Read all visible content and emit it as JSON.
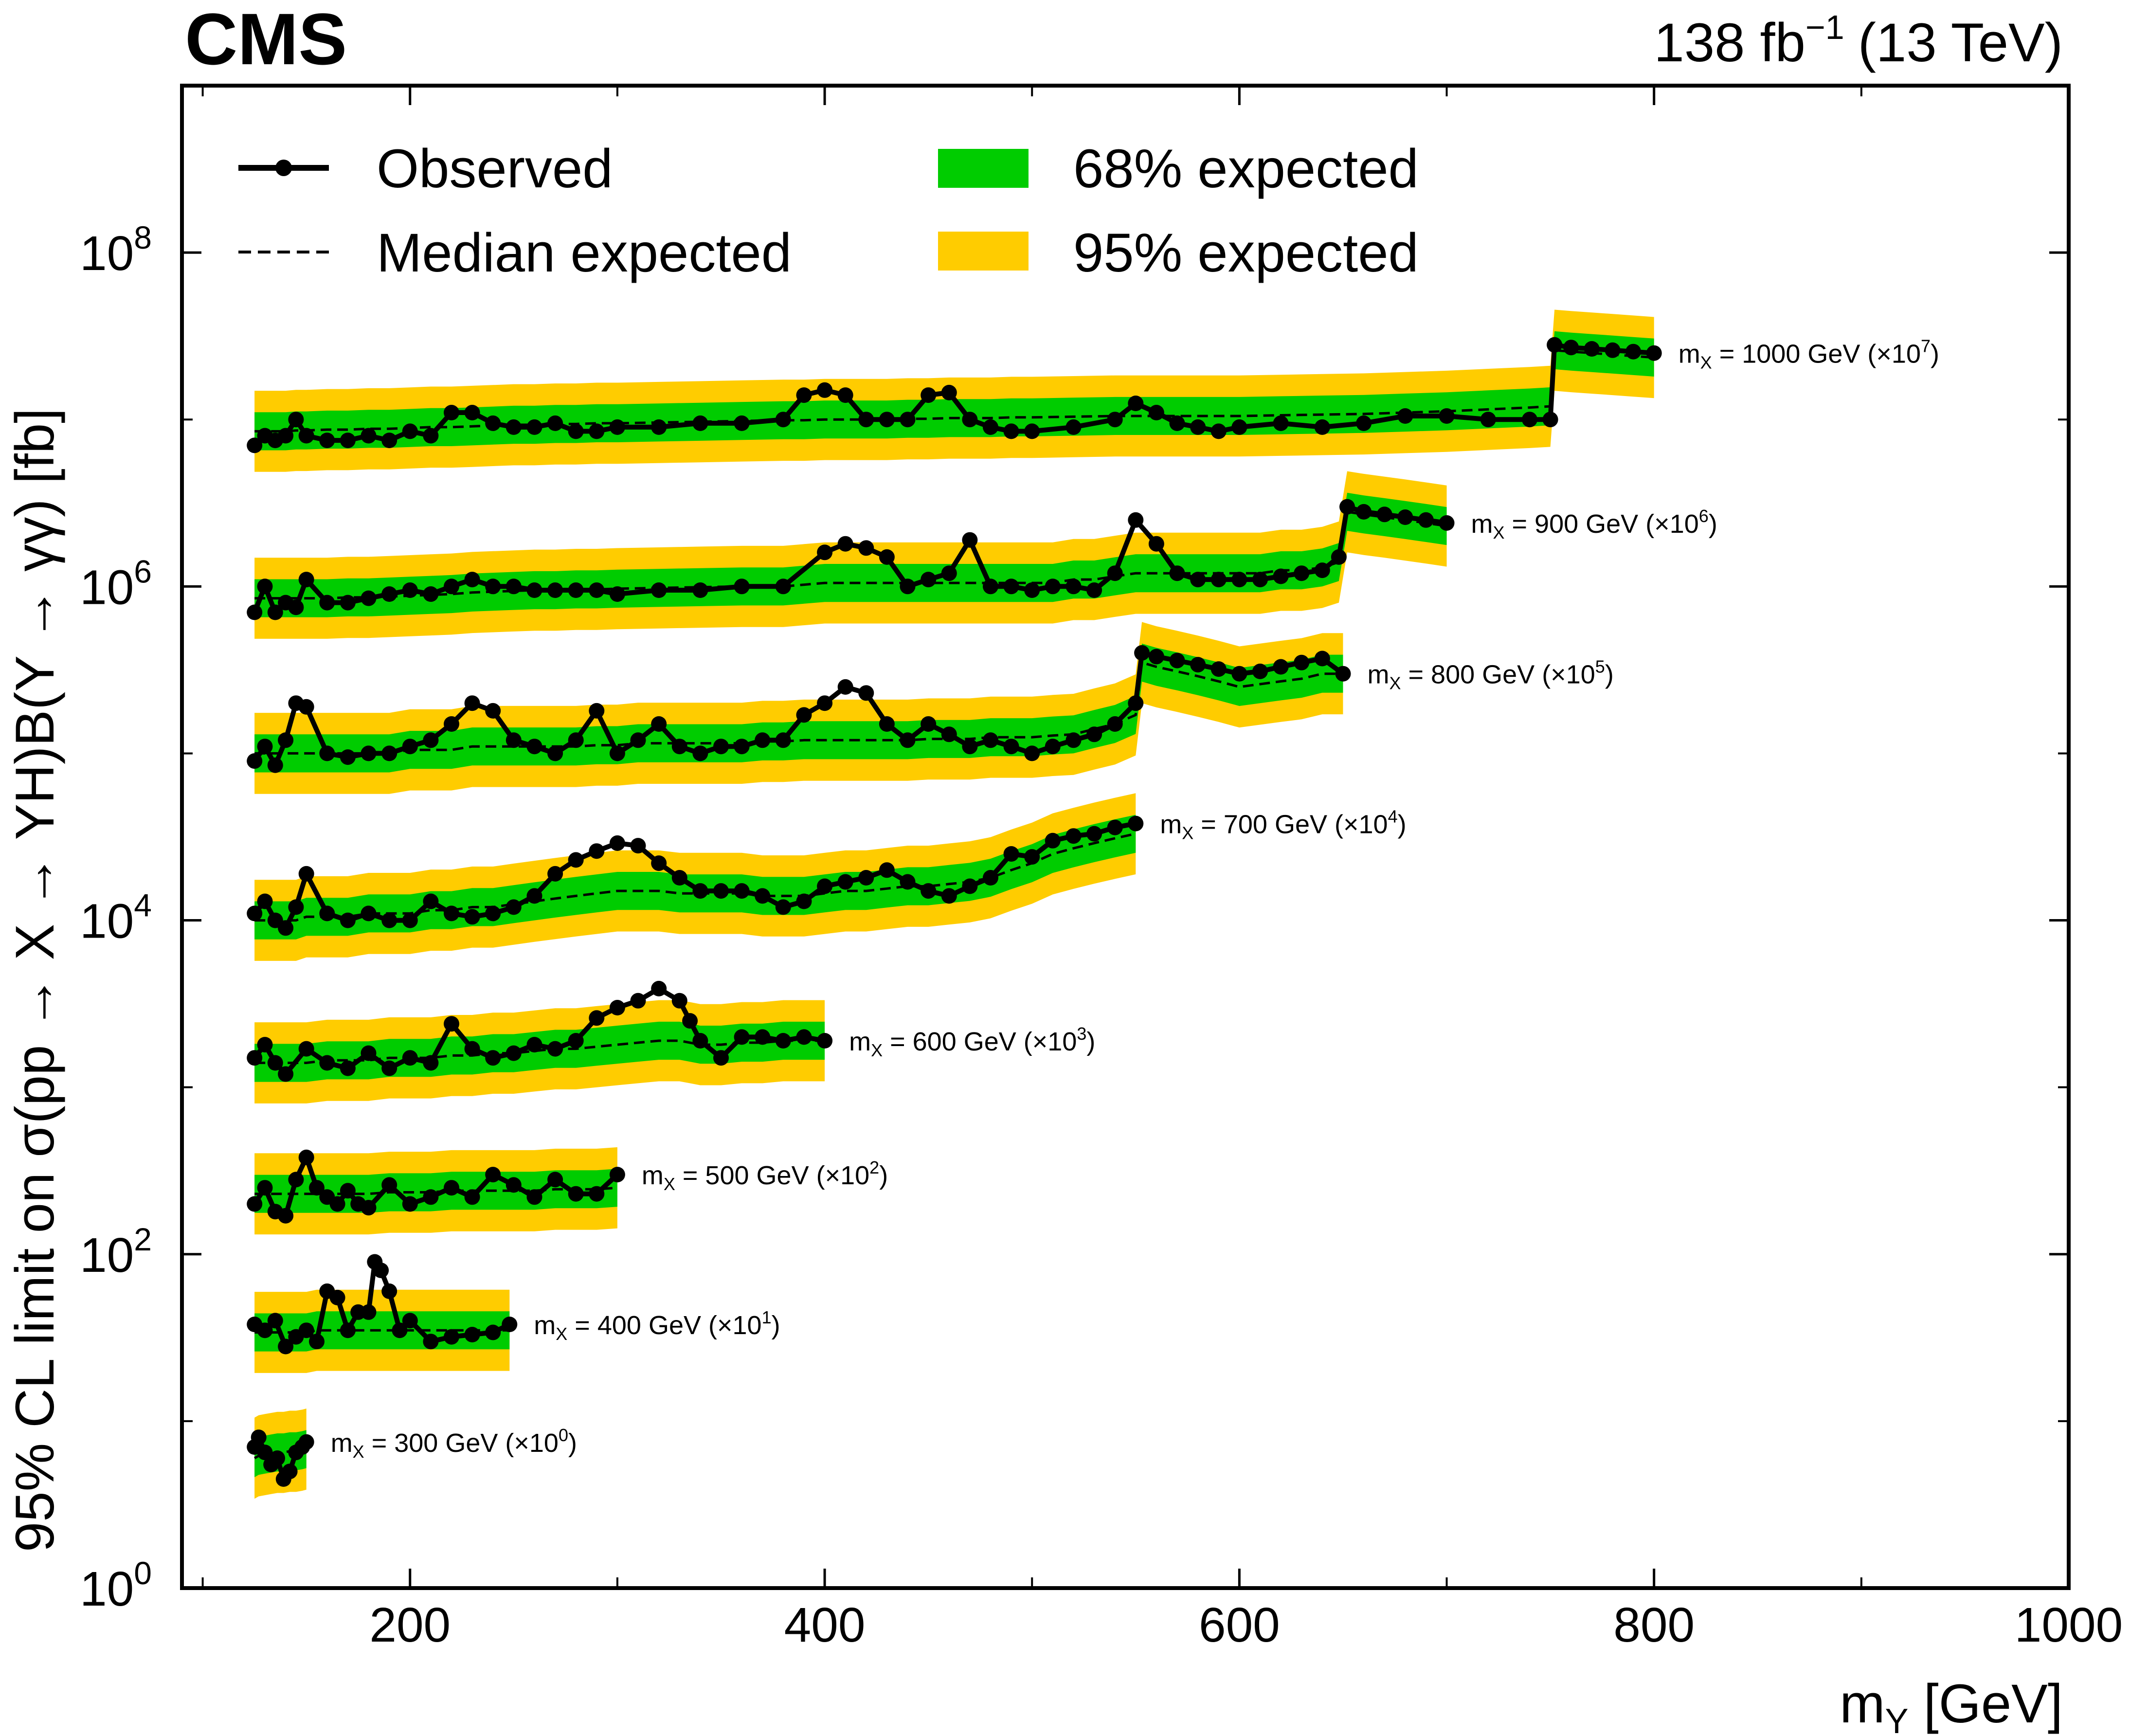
{
  "header": {
    "experiment": "CMS",
    "lumi_value": "138 fb",
    "lumi_exponent": "−1",
    "energy": "(13 TeV)"
  },
  "colors": {
    "band68": "#00cc00",
    "band95": "#ffcc00",
    "observed": "#000000",
    "expected": "#000000"
  },
  "chart_data": {
    "type": "line",
    "title": "",
    "xlabel": "m",
    "xlabel_sub": "Y",
    "xlabel_unit": " [GeV]",
    "ylabel": "95% CL limit on σ(pp → X → YH)B(Y → γγ) [fb]",
    "yscale": "log",
    "xlim": [
      90,
      1000
    ],
    "ylim": [
      1,
      1000000000
    ],
    "x_ticks": [
      200,
      400,
      600,
      800,
      1000
    ],
    "y_ticks": [
      {
        "base": "10",
        "exp": "0",
        "value": 1
      },
      {
        "base": "10",
        "exp": "2",
        "value": 100
      },
      {
        "base": "10",
        "exp": "4",
        "value": 10000
      },
      {
        "base": "10",
        "exp": "6",
        "value": 1000000
      },
      {
        "base": "10",
        "exp": "8",
        "value": 100000000
      }
    ],
    "legend": {
      "observed": "Observed",
      "expected": "Median expected",
      "band68": "68% expected",
      "band95": "95% expected",
      "placement": "top-left"
    },
    "series": [
      {
        "name": "m_X = 300 GeV",
        "label_prefix": "m",
        "label_sub": "X",
        "label_mid": " = 300 GeV (×10",
        "label_exp": "0",
        "label_suffix": ")",
        "x": [
          125,
          127,
          130,
          133,
          136,
          139,
          142,
          145,
          148,
          150
        ],
        "observed": [
          7,
          8,
          6.5,
          5.5,
          6,
          4.5,
          5,
          6.5,
          7,
          7.5
        ],
        "expected": [
          6,
          6.2,
          6.3,
          6.4,
          6.5,
          6.5,
          6.6,
          6.6,
          6.7,
          6.8
        ]
      },
      {
        "name": "m_X = 400 GeV",
        "label_prefix": "m",
        "label_sub": "X",
        "label_mid": " = 400 GeV (×10",
        "label_exp": "1",
        "label_suffix": ")",
        "x": [
          125,
          130,
          135,
          140,
          145,
          150,
          155,
          160,
          165,
          170,
          175,
          180,
          183,
          186,
          190,
          195,
          200,
          210,
          220,
          230,
          240,
          248
        ],
        "observed": [
          38,
          35,
          40,
          28,
          32,
          35,
          30,
          60,
          55,
          35,
          45,
          45,
          90,
          80,
          60,
          35,
          40,
          30,
          32,
          33,
          34,
          38
        ],
        "expected": [
          34,
          34,
          34,
          34,
          34,
          34,
          35,
          35,
          35,
          35,
          35,
          35,
          35,
          35,
          35,
          35,
          35,
          35,
          35,
          35,
          35,
          35
        ]
      },
      {
        "name": "m_X = 500 GeV",
        "label_prefix": "m",
        "label_sub": "X",
        "label_mid": " = 500 GeV (×10",
        "label_exp": "2",
        "label_suffix": ")",
        "x": [
          125,
          130,
          135,
          140,
          145,
          150,
          155,
          160,
          165,
          170,
          175,
          180,
          190,
          200,
          210,
          220,
          230,
          240,
          250,
          260,
          270,
          280,
          290,
          300
        ],
        "observed": [
          200,
          250,
          180,
          170,
          280,
          380,
          250,
          220,
          200,
          240,
          200,
          190,
          260,
          200,
          220,
          250,
          220,
          300,
          260,
          220,
          280,
          230,
          230,
          300
        ],
        "expected": [
          230,
          230,
          230,
          230,
          230,
          230,
          230,
          230,
          230,
          230,
          230,
          230,
          235,
          235,
          235,
          240,
          240,
          240,
          240,
          240,
          245,
          245,
          245,
          250
        ]
      },
      {
        "name": "m_X = 600 GeV",
        "label_prefix": "m",
        "label_sub": "X",
        "label_mid": " = 600 GeV (×10",
        "label_exp": "3",
        "label_suffix": ")",
        "x": [
          125,
          130,
          135,
          140,
          150,
          160,
          170,
          180,
          190,
          200,
          210,
          220,
          230,
          240,
          250,
          260,
          270,
          280,
          290,
          300,
          310,
          320,
          330,
          335,
          340,
          350,
          360,
          370,
          380,
          390,
          400
        ],
        "observed": [
          1500,
          1800,
          1400,
          1200,
          1700,
          1400,
          1300,
          1600,
          1300,
          1500,
          1400,
          2400,
          1700,
          1500,
          1600,
          1800,
          1700,
          1900,
          2600,
          3000,
          3300,
          3900,
          3300,
          2500,
          1900,
          1500,
          2000,
          2000,
          1900,
          2000,
          1900
        ],
        "expected": [
          1400,
          1400,
          1400,
          1400,
          1400,
          1450,
          1450,
          1450,
          1500,
          1500,
          1500,
          1550,
          1550,
          1600,
          1600,
          1650,
          1700,
          1700,
          1750,
          1800,
          1850,
          1900,
          1900,
          1850,
          1800,
          1800,
          1850,
          1850,
          1900,
          1900,
          1900
        ]
      },
      {
        "name": "m_X = 700 GeV",
        "label_prefix": "m",
        "label_sub": "X",
        "label_mid": " = 700 GeV (×10",
        "label_exp": "4",
        "label_suffix": ")",
        "x": [
          125,
          130,
          135,
          140,
          145,
          150,
          160,
          170,
          180,
          190,
          200,
          210,
          220,
          230,
          240,
          250,
          260,
          270,
          280,
          290,
          300,
          310,
          320,
          330,
          340,
          350,
          360,
          370,
          380,
          390,
          400,
          410,
          420,
          430,
          440,
          450,
          460,
          470,
          480,
          490,
          500,
          510,
          520,
          530,
          540,
          550
        ],
        "observed": [
          11000,
          13000,
          10000,
          9000,
          12000,
          19000,
          11000,
          10000,
          11000,
          10000,
          10000,
          13000,
          11000,
          10500,
          11000,
          12000,
          14000,
          19000,
          23000,
          26000,
          29000,
          28000,
          22000,
          18000,
          15000,
          15000,
          15000,
          14000,
          12000,
          13000,
          16000,
          17000,
          18000,
          20000,
          17000,
          15000,
          14000,
          16000,
          18000,
          25000,
          24000,
          30000,
          32000,
          33000,
          36000,
          38000
        ],
        "expected": [
          10000,
          10000,
          10000,
          10000,
          10000,
          10500,
          10500,
          10500,
          11000,
          11000,
          11000,
          11500,
          11500,
          12000,
          12000,
          12500,
          13000,
          13500,
          14000,
          14500,
          15000,
          15000,
          15000,
          14500,
          14500,
          14500,
          14500,
          14000,
          14000,
          14000,
          14500,
          15000,
          15000,
          15500,
          16000,
          16000,
          16500,
          17000,
          18000,
          20000,
          22000,
          25000,
          27000,
          29000,
          31000,
          33000
        ]
      },
      {
        "name": "m_X = 800 GeV",
        "label_prefix": "m",
        "label_sub": "X",
        "label_mid": " = 800 GeV (×10",
        "label_exp": "5",
        "label_suffix": ")",
        "x": [
          125,
          130,
          135,
          140,
          145,
          150,
          160,
          170,
          180,
          190,
          200,
          210,
          220,
          230,
          240,
          250,
          260,
          270,
          280,
          290,
          300,
          310,
          320,
          330,
          340,
          350,
          360,
          370,
          380,
          390,
          400,
          410,
          420,
          430,
          440,
          450,
          460,
          470,
          480,
          490,
          500,
          510,
          520,
          530,
          540,
          550,
          553,
          560,
          570,
          580,
          590,
          600,
          610,
          620,
          630,
          640,
          650
        ],
        "observed": [
          90000,
          110000,
          85000,
          120000,
          200000,
          190000,
          100000,
          95000,
          100000,
          100000,
          110000,
          120000,
          150000,
          200000,
          180000,
          120000,
          110000,
          100000,
          120000,
          180000,
          100000,
          120000,
          150000,
          110000,
          100000,
          110000,
          110000,
          120000,
          120000,
          170000,
          200000,
          250000,
          230000,
          150000,
          120000,
          150000,
          130000,
          110000,
          120000,
          110000,
          100000,
          110000,
          120000,
          130000,
          150000,
          200000,
          400000,
          380000,
          360000,
          340000,
          320000,
          300000,
          310000,
          330000,
          350000,
          370000,
          300000
        ],
        "expected": [
          100000,
          100000,
          100000,
          100000,
          100000,
          100000,
          100000,
          100000,
          100000,
          100000,
          105000,
          105000,
          105000,
          110000,
          110000,
          110000,
          110000,
          110000,
          110000,
          112000,
          112000,
          115000,
          115000,
          115000,
          115000,
          115000,
          115000,
          118000,
          118000,
          120000,
          120000,
          120000,
          120000,
          120000,
          120000,
          122000,
          122000,
          122000,
          125000,
          125000,
          125000,
          128000,
          130000,
          140000,
          150000,
          170000,
          350000,
          330000,
          310000,
          290000,
          270000,
          250000,
          260000,
          270000,
          280000,
          300000,
          300000
        ]
      },
      {
        "name": "m_X = 900 GeV",
        "label_prefix": "m",
        "label_sub": "X",
        "label_mid": " = 900 GeV (×10",
        "label_exp": "6",
        "label_suffix": ")",
        "x": [
          125,
          130,
          135,
          140,
          145,
          150,
          160,
          170,
          180,
          190,
          200,
          210,
          220,
          230,
          240,
          250,
          260,
          270,
          280,
          290,
          300,
          320,
          340,
          360,
          380,
          400,
          410,
          420,
          430,
          440,
          450,
          460,
          470,
          480,
          490,
          500,
          510,
          520,
          530,
          540,
          550,
          560,
          570,
          580,
          590,
          600,
          610,
          620,
          630,
          640,
          648,
          652,
          660,
          670,
          680,
          690,
          700
        ],
        "observed": [
          700000,
          1000000,
          700000,
          800000,
          750000,
          1100000,
          800000,
          800000,
          850000,
          900000,
          950000,
          900000,
          1000000,
          1100000,
          1000000,
          1000000,
          950000,
          950000,
          950000,
          950000,
          900000,
          950000,
          950000,
          1000000,
          1000000,
          1600000,
          1800000,
          1700000,
          1500000,
          1000000,
          1100000,
          1200000,
          1900000,
          1000000,
          1000000,
          950000,
          1000000,
          1000000,
          950000,
          1200000,
          2500000,
          1800000,
          1200000,
          1100000,
          1100000,
          1100000,
          1100000,
          1150000,
          1200000,
          1250000,
          1500000,
          3000000,
          2800000,
          2700000,
          2600000,
          2500000,
          2400000
        ],
        "expected": [
          850000,
          850000,
          850000,
          850000,
          850000,
          850000,
          850000,
          860000,
          860000,
          870000,
          880000,
          890000,
          900000,
          920000,
          930000,
          940000,
          950000,
          950000,
          960000,
          960000,
          970000,
          980000,
          990000,
          1000000,
          1000000,
          1050000,
          1050000,
          1050000,
          1050000,
          1050000,
          1050000,
          1050000,
          1050000,
          1050000,
          1050000,
          1050000,
          1050000,
          1100000,
          1100000,
          1150000,
          1200000,
          1200000,
          1200000,
          1200000,
          1200000,
          1200000,
          1200000,
          1250000,
          1250000,
          1300000,
          1400000,
          2800000,
          2700000,
          2600000,
          2500000,
          2400000,
          2300000
        ]
      },
      {
        "name": "m_X = 1000 GeV",
        "label_prefix": "m",
        "label_sub": "X",
        "label_mid": " = 1000 GeV (×10",
        "label_exp": "7",
        "label_suffix": ")",
        "x": [
          125,
          130,
          135,
          140,
          145,
          150,
          160,
          170,
          180,
          190,
          200,
          210,
          220,
          230,
          240,
          250,
          260,
          270,
          280,
          290,
          300,
          320,
          340,
          360,
          380,
          390,
          400,
          410,
          420,
          430,
          440,
          450,
          460,
          470,
          480,
          490,
          500,
          520,
          540,
          550,
          560,
          570,
          580,
          590,
          600,
          620,
          640,
          660,
          680,
          700,
          720,
          740,
          750,
          752,
          760,
          770,
          780,
          790,
          800
        ],
        "observed": [
          7000000,
          8000000,
          7500000,
          8000000,
          10000000,
          8000000,
          7500000,
          7500000,
          8000000,
          7500000,
          8500000,
          8000000,
          11000000,
          11000000,
          9500000,
          9000000,
          9000000,
          9500000,
          8500000,
          8500000,
          9000000,
          9000000,
          9500000,
          9500000,
          10000000,
          14000000,
          15000000,
          14000000,
          10000000,
          10000000,
          10000000,
          14000000,
          14500000,
          10000000,
          9000000,
          8500000,
          8500000,
          9000000,
          10000000,
          12500000,
          11000000,
          9500000,
          9000000,
          8500000,
          9000000,
          9500000,
          9000000,
          9500000,
          10500000,
          10500000,
          10000000,
          10000000,
          10000000,
          28000000,
          27000000,
          26500000,
          26000000,
          25500000,
          25000000
        ],
        "expected": [
          8500000,
          8500000,
          8500000,
          8500000,
          8600000,
          8600000,
          8700000,
          8700000,
          8800000,
          8800000,
          8900000,
          9000000,
          9000000,
          9100000,
          9200000,
          9300000,
          9300000,
          9400000,
          9400000,
          9500000,
          9500000,
          9600000,
          9700000,
          9800000,
          9900000,
          9900000,
          10000000,
          10000000,
          10000000,
          10000000,
          10100000,
          10100000,
          10200000,
          10200000,
          10200000,
          10300000,
          10300000,
          10400000,
          10500000,
          10500000,
          10500000,
          10500000,
          10500000,
          10500000,
          10500000,
          10600000,
          10700000,
          10800000,
          11000000,
          11200000,
          11500000,
          11800000,
          12000000,
          26000000,
          25500000,
          25000000,
          24500000,
          24000000,
          23500000
        ]
      }
    ]
  }
}
